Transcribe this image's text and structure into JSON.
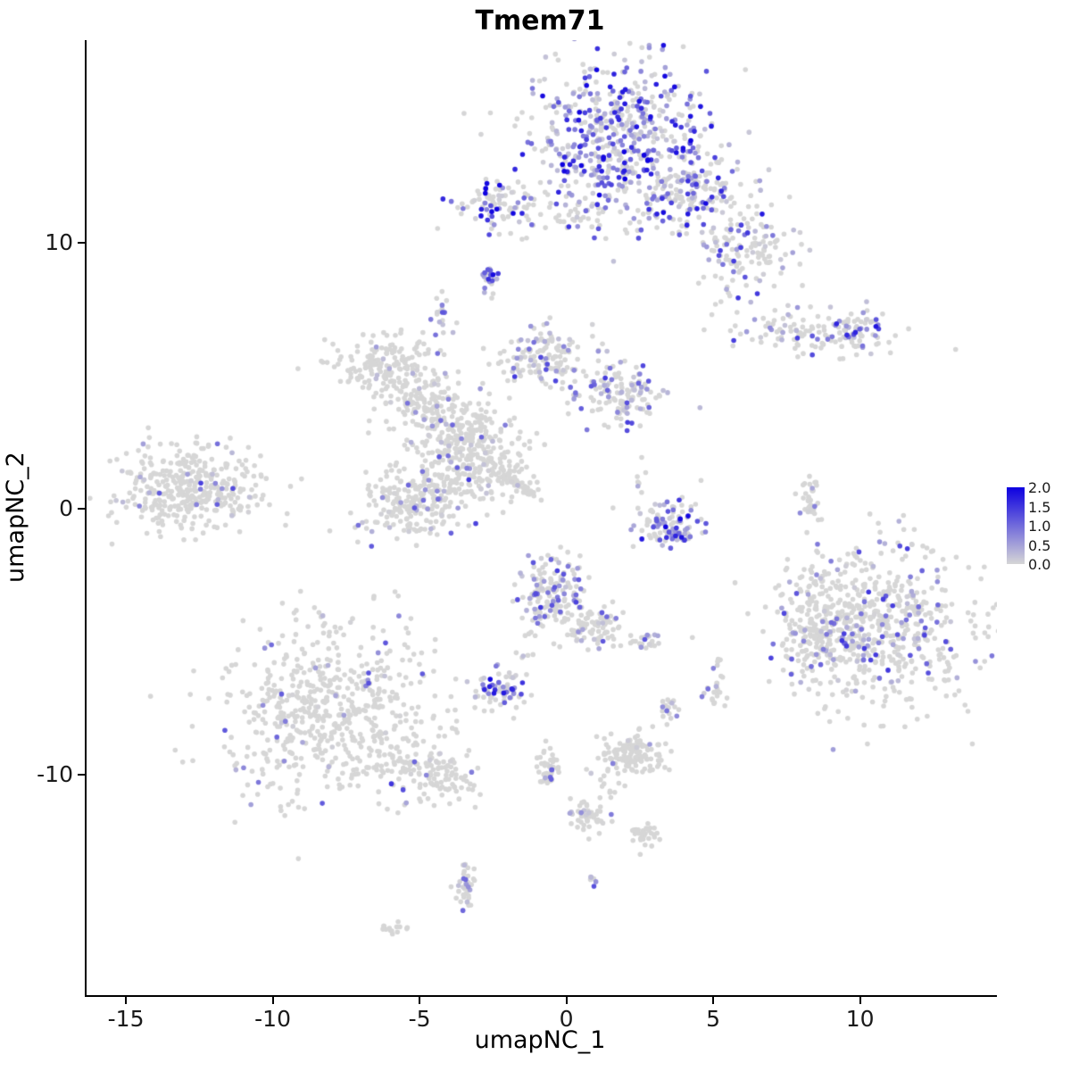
{
  "title": "Tmem71",
  "chart_data": {
    "type": "scatter",
    "title": "Tmem71",
    "xlabel": "umapNC_1",
    "ylabel": "umapNC_2",
    "xlim": [
      -16.4,
      14.6
    ],
    "ylim": [
      -18.3,
      17.6
    ],
    "x_ticks": [
      -15,
      -10,
      -5,
      0,
      5,
      10
    ],
    "y_ticks": [
      -10,
      0,
      10
    ],
    "grid": false,
    "point_radius": 2.8,
    "seed": 42,
    "colors": {
      "low": "#D6D6D6",
      "high": "#0D00E0"
    },
    "legend": {
      "position": "right",
      "min": 0,
      "max": 2,
      "ticks": [
        "2.0",
        "1.5",
        "1.0",
        "0.5",
        "0.0"
      ]
    },
    "clusters": [
      {
        "x": 1.7,
        "y": 14.0,
        "sx": 1.6,
        "sy": 1.5,
        "n": 550,
        "frac": 0.7,
        "max": 2.0,
        "rot": 0
      },
      {
        "x": 4.2,
        "y": 11.9,
        "sx": 1.2,
        "sy": 0.8,
        "n": 170,
        "frac": 0.45,
        "max": 1.8,
        "rot": 0
      },
      {
        "x": 6.0,
        "y": 9.7,
        "sx": 0.9,
        "sy": 0.8,
        "n": 130,
        "frac": 0.3,
        "max": 1.5,
        "rot": 0
      },
      {
        "x": -2.4,
        "y": 11.4,
        "sx": 0.8,
        "sy": 0.45,
        "n": 90,
        "frac": 0.45,
        "max": 2.0,
        "rot": 0
      },
      {
        "x": 0.2,
        "y": 11.0,
        "sx": 0.9,
        "sy": 0.4,
        "n": 40,
        "frac": 0.25,
        "max": 1.2,
        "rot": 0
      },
      {
        "x": -2.7,
        "y": 8.6,
        "sx": 0.18,
        "sy": 0.28,
        "n": 22,
        "frac": 0.85,
        "max": 2.0,
        "rot": 0
      },
      {
        "x": -4.4,
        "y": 7.3,
        "sx": 0.22,
        "sy": 0.3,
        "n": 18,
        "frac": 0.4,
        "max": 1.2,
        "rot": 0
      },
      {
        "x": 8.4,
        "y": 6.6,
        "sx": 1.5,
        "sy": 0.4,
        "n": 120,
        "frac": 0.2,
        "max": 1.5,
        "rot": -8
      },
      {
        "x": 9.8,
        "y": 6.8,
        "sx": 0.5,
        "sy": 0.35,
        "n": 45,
        "frac": 0.65,
        "max": 2.0,
        "rot": 0
      },
      {
        "x": -0.8,
        "y": 5.7,
        "sx": 0.7,
        "sy": 0.55,
        "n": 140,
        "frac": 0.3,
        "max": 1.5,
        "rot": 0
      },
      {
        "x": 1.8,
        "y": 4.2,
        "sx": 0.7,
        "sy": 0.6,
        "n": 130,
        "frac": 0.35,
        "max": 1.5,
        "rot": 0
      },
      {
        "x": -6.4,
        "y": 5.5,
        "sx": 0.9,
        "sy": 0.5,
        "n": 150,
        "frac": 0.05,
        "max": 0.8,
        "rot": 0
      },
      {
        "x": -4.9,
        "y": 4.0,
        "sx": 0.8,
        "sy": 0.6,
        "n": 140,
        "frac": 0.08,
        "max": 1.0,
        "rot": 0
      },
      {
        "x": -3.5,
        "y": 3.0,
        "sx": 0.7,
        "sy": 0.5,
        "n": 110,
        "frac": 0.1,
        "max": 1.2,
        "rot": 0
      },
      {
        "x": -3.2,
        "y": 1.7,
        "sx": 1.0,
        "sy": 0.75,
        "n": 240,
        "frac": 0.12,
        "max": 1.5,
        "rot": 0
      },
      {
        "x": -13.0,
        "y": 0.8,
        "sx": 1.35,
        "sy": 0.8,
        "n": 380,
        "frac": 0.07,
        "max": 1.5,
        "rot": 0
      },
      {
        "x": -5.3,
        "y": 0.2,
        "sx": 0.85,
        "sy": 0.7,
        "n": 220,
        "frac": 0.09,
        "max": 1.2,
        "rot": 0
      },
      {
        "x": -1.7,
        "y": 0.9,
        "sx": 0.55,
        "sy": 0.12,
        "n": 55,
        "frac": 0.03,
        "max": 0.5,
        "rot": -35
      },
      {
        "x": 3.4,
        "y": -0.5,
        "sx": 0.65,
        "sy": 0.45,
        "n": 85,
        "frac": 0.5,
        "max": 2.0,
        "rot": 0
      },
      {
        "x": 3.7,
        "y": -1.0,
        "sx": 0.45,
        "sy": 0.15,
        "n": 28,
        "frac": 0.85,
        "max": 2.0,
        "rot": 0
      },
      {
        "x": 8.2,
        "y": 0.3,
        "sx": 0.15,
        "sy": 0.5,
        "n": 35,
        "frac": 0.3,
        "max": 1.0,
        "rot": 0
      },
      {
        "x": 10.5,
        "y": -4.4,
        "sx": 1.7,
        "sy": 1.5,
        "n": 640,
        "frac": 0.2,
        "max": 1.6,
        "rot": 0
      },
      {
        "x": 8.4,
        "y": -4.4,
        "sx": 0.5,
        "sy": 0.9,
        "n": 110,
        "frac": 0.12,
        "max": 1.2,
        "rot": 0
      },
      {
        "x": -0.5,
        "y": -3.2,
        "sx": 0.6,
        "sy": 0.7,
        "n": 170,
        "frac": 0.35,
        "max": 1.5,
        "rot": 0
      },
      {
        "x": 1.0,
        "y": -4.4,
        "sx": 0.5,
        "sy": 0.4,
        "n": 80,
        "frac": 0.15,
        "max": 1.2,
        "rot": 0
      },
      {
        "x": 2.6,
        "y": -5.0,
        "sx": 0.2,
        "sy": 0.2,
        "n": 25,
        "frac": 0.3,
        "max": 1.2,
        "rot": 0
      },
      {
        "x": -2.3,
        "y": -6.8,
        "sx": 0.45,
        "sy": 0.35,
        "n": 70,
        "frac": 0.55,
        "max": 2.0,
        "rot": 0
      },
      {
        "x": -8.2,
        "y": -7.7,
        "sx": 1.9,
        "sy": 1.6,
        "n": 600,
        "frac": 0.06,
        "max": 1.5,
        "rot": 0
      },
      {
        "x": -4.8,
        "y": -9.9,
        "sx": 0.9,
        "sy": 0.5,
        "n": 130,
        "frac": 0.08,
        "max": 1.2,
        "rot": -20
      },
      {
        "x": 5.0,
        "y": -6.9,
        "sx": 0.2,
        "sy": 0.3,
        "n": 22,
        "frac": 0.35,
        "max": 1.5,
        "rot": 0
      },
      {
        "x": 3.4,
        "y": -7.6,
        "sx": 0.18,
        "sy": 0.25,
        "n": 18,
        "frac": 0.3,
        "max": 1.2,
        "rot": 0
      },
      {
        "x": 2.1,
        "y": -9.3,
        "sx": 0.55,
        "sy": 0.4,
        "n": 130,
        "frac": 0.04,
        "max": 0.8,
        "rot": 0
      },
      {
        "x": -0.7,
        "y": -9.6,
        "sx": 0.18,
        "sy": 0.5,
        "n": 45,
        "frac": 0.12,
        "max": 1.2,
        "rot": 0
      },
      {
        "x": 0.8,
        "y": -11.6,
        "sx": 0.35,
        "sy": 0.35,
        "n": 45,
        "frac": 0.1,
        "max": 1.0,
        "rot": 0
      },
      {
        "x": 0.1,
        "y": -11.5,
        "sx": 0.06,
        "sy": 0.06,
        "n": 3,
        "frac": 1.0,
        "max": 1.8,
        "rot": 0
      },
      {
        "x": 2.6,
        "y": -12.3,
        "sx": 0.3,
        "sy": 0.25,
        "n": 30,
        "frac": 0.05,
        "max": 0.8,
        "rot": 0
      },
      {
        "x": -3.5,
        "y": -14.3,
        "sx": 0.16,
        "sy": 0.55,
        "n": 40,
        "frac": 0.18,
        "max": 1.5,
        "rot": 0
      },
      {
        "x": -5.9,
        "y": -15.8,
        "sx": 0.25,
        "sy": 0.13,
        "n": 14,
        "frac": 0.05,
        "max": 0.5,
        "rot": 0
      },
      {
        "x": 0.8,
        "y": -13.9,
        "sx": 0.08,
        "sy": 0.12,
        "n": 6,
        "frac": 0.85,
        "max": 1.5,
        "rot": 0
      },
      {
        "x": 8.3,
        "y": -2.1,
        "sx": 0.1,
        "sy": 0.3,
        "n": 4,
        "frac": 0.2,
        "max": 1.0,
        "rot": 0
      },
      {
        "x": 5.1,
        "y": -5.8,
        "sx": 0.12,
        "sy": 0.2,
        "n": 6,
        "frac": 0.3,
        "max": 1.0,
        "rot": 0
      },
      {
        "x": 2.5,
        "y": 1.3,
        "sx": 0.15,
        "sy": 0.6,
        "n": 8,
        "frac": 0.2,
        "max": 1.0,
        "rot": 0
      },
      {
        "x": -1.3,
        "y": -5.1,
        "sx": 0.2,
        "sy": 0.5,
        "n": 10,
        "frac": 0.1,
        "max": 1.0,
        "rot": 0
      },
      {
        "x": 1.4,
        "y": -10.4,
        "sx": 0.25,
        "sy": 0.3,
        "n": 12,
        "frac": 0.05,
        "max": 0.8,
        "rot": 0
      }
    ]
  }
}
